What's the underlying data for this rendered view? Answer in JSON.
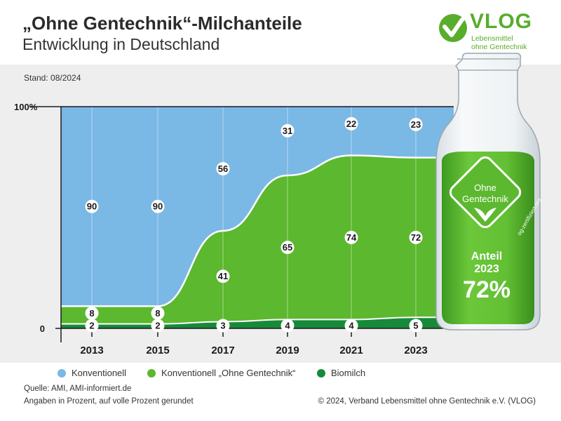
{
  "header": {
    "title": "„Ohne Gentechnik“-Milchanteile",
    "subtitle": "Entwicklung in Deutschland",
    "stand": "Stand: 08/2024"
  },
  "logo": {
    "name": "VLOG",
    "line1": "Lebensmittel",
    "line2": "ohne Gentechnik",
    "color": "#58ad2c"
  },
  "bottle": {
    "seal_line1": "Ohne",
    "seal_line2": "Gentechnik",
    "seal_side": "og-zertifiziert.org",
    "label_line1": "Anteil",
    "label_line2": "2023",
    "label_value": "72%"
  },
  "legend": [
    {
      "label": "Konventionell",
      "color": "#7ab8e6"
    },
    {
      "label": "Konventionell „Ohne Gentechnik“",
      "color": "#5cb82e"
    },
    {
      "label": "Biomilch",
      "color": "#178a3a"
    }
  ],
  "footer": {
    "source": "Quelle: AMI, AMI-informiert.de",
    "note": "Angaben in Prozent, auf volle Prozent gerundet",
    "copyright": "© 2024, Verband Lebensmittel ohne Gentechnik e.V. (VLOG)"
  },
  "chart_data": {
    "type": "area",
    "stacked": true,
    "x": [
      "2013",
      "2015",
      "2017",
      "2019",
      "2021",
      "2023"
    ],
    "ylim": [
      0,
      100
    ],
    "yticks": [
      "0",
      "100%"
    ],
    "series": [
      {
        "name": "Biomilch",
        "values": [
          2,
          2,
          3,
          4,
          4,
          5
        ],
        "color": "#178a3a"
      },
      {
        "name": "Konventionell „Ohne Gentechnik“",
        "values": [
          8,
          8,
          41,
          65,
          74,
          72
        ],
        "color": "#5cb82e"
      },
      {
        "name": "Konventionell",
        "values": [
          90,
          90,
          56,
          31,
          22,
          23
        ],
        "color": "#7ab8e6"
      }
    ],
    "grid": true,
    "legend_position": "bottom"
  }
}
